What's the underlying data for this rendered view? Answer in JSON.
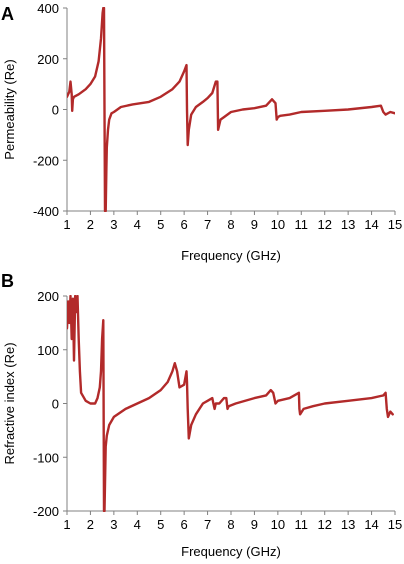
{
  "colors": {
    "series": "#b22a2a",
    "axis": "#808080",
    "text": "#000000"
  },
  "chart_data": [
    {
      "type": "line",
      "panel_label": "A",
      "title": "",
      "xlabel": "Frequency (GHz)",
      "ylabel": "Permeability (Re)",
      "xlim": [
        1,
        15
      ],
      "ylim": [
        -400,
        400
      ],
      "xticks": [
        1,
        2,
        3,
        4,
        5,
        6,
        7,
        8,
        9,
        10,
        11,
        12,
        13,
        14,
        15
      ],
      "yticks": [
        -400,
        -200,
        0,
        200,
        400
      ],
      "grid": false,
      "legend": "none",
      "series": [
        {
          "x": [
            1.0,
            1.1,
            1.15,
            1.2,
            1.22,
            1.25,
            1.3,
            1.5,
            1.8,
            2.0,
            2.2,
            2.35,
            2.45,
            2.52,
            2.55,
            2.58,
            2.62,
            2.65,
            2.68,
            2.7,
            2.75,
            2.8,
            2.9,
            3.0,
            3.3,
            3.8,
            4.5,
            5.0,
            5.5,
            5.8,
            6.0,
            6.1,
            6.12,
            6.15,
            6.2,
            6.3,
            6.5,
            6.8,
            7.0,
            7.2,
            7.35,
            7.42,
            7.45,
            7.5,
            7.55,
            7.7,
            8.0,
            8.5,
            9.0,
            9.5,
            9.75,
            9.9,
            9.95,
            10.0,
            10.1,
            10.5,
            11.0,
            12.0,
            13.0,
            14.0,
            14.4,
            14.5,
            14.6,
            14.8,
            15.0
          ],
          "y": [
            50,
            70,
            110,
            60,
            -5,
            40,
            50,
            60,
            80,
            100,
            130,
            190,
            280,
            380,
            400,
            400,
            -400,
            -400,
            -230,
            -150,
            -80,
            -40,
            -15,
            -10,
            10,
            20,
            30,
            50,
            80,
            110,
            150,
            175,
            0,
            -140,
            -80,
            -20,
            10,
            30,
            45,
            65,
            110,
            110,
            -80,
            -60,
            -40,
            -30,
            -10,
            0,
            5,
            15,
            40,
            25,
            -40,
            -30,
            -25,
            -20,
            -10,
            -5,
            0,
            10,
            15,
            -10,
            -20,
            -10,
            -15
          ]
        }
      ]
    },
    {
      "type": "line",
      "panel_label": "B",
      "title": "",
      "xlabel": "Frequency (GHz)",
      "ylabel": "Refractive index (Re)",
      "xlim": [
        1,
        15
      ],
      "ylim": [
        -200,
        200
      ],
      "xticks": [
        1,
        2,
        3,
        4,
        5,
        6,
        7,
        8,
        9,
        10,
        11,
        12,
        13,
        14,
        15
      ],
      "yticks": [
        -200,
        -100,
        0,
        100,
        200
      ],
      "grid": false,
      "legend": "none",
      "series": [
        {
          "x": [
            1.0,
            1.05,
            1.1,
            1.15,
            1.2,
            1.25,
            1.3,
            1.35,
            1.4,
            1.45,
            1.5,
            1.55,
            1.6,
            1.8,
            2.0,
            2.2,
            2.3,
            2.4,
            2.45,
            2.5,
            2.55,
            2.58,
            2.6,
            2.62,
            2.65,
            2.7,
            2.8,
            3.0,
            3.5,
            4.0,
            4.5,
            5.0,
            5.3,
            5.5,
            5.6,
            5.7,
            5.8,
            6.0,
            6.1,
            6.12,
            6.15,
            6.2,
            6.3,
            6.5,
            6.8,
            7.0,
            7.2,
            7.25,
            7.3,
            7.35,
            7.5,
            7.7,
            7.8,
            7.85,
            7.9,
            8.2,
            9.0,
            9.5,
            9.7,
            9.8,
            9.9,
            10.0,
            10.5,
            10.9,
            10.92,
            10.95,
            11.1,
            11.5,
            12.0,
            13.0,
            14.0,
            14.5,
            14.6,
            14.65,
            14.7,
            14.8,
            14.9
          ],
          "y": [
            140,
            190,
            150,
            200,
            120,
            195,
            80,
            200,
            170,
            200,
            120,
            60,
            20,
            5,
            0,
            0,
            10,
            30,
            60,
            120,
            155,
            -200,
            -200,
            -150,
            -80,
            -60,
            -40,
            -25,
            -10,
            0,
            10,
            25,
            40,
            60,
            75,
            60,
            30,
            35,
            60,
            40,
            -10,
            -65,
            -40,
            -20,
            0,
            5,
            10,
            0,
            -10,
            0,
            0,
            10,
            10,
            -10,
            -5,
            0,
            10,
            15,
            25,
            20,
            0,
            5,
            10,
            20,
            -10,
            -20,
            -10,
            -5,
            0,
            5,
            10,
            15,
            20,
            -10,
            -25,
            -15,
            -20
          ]
        }
      ]
    }
  ]
}
